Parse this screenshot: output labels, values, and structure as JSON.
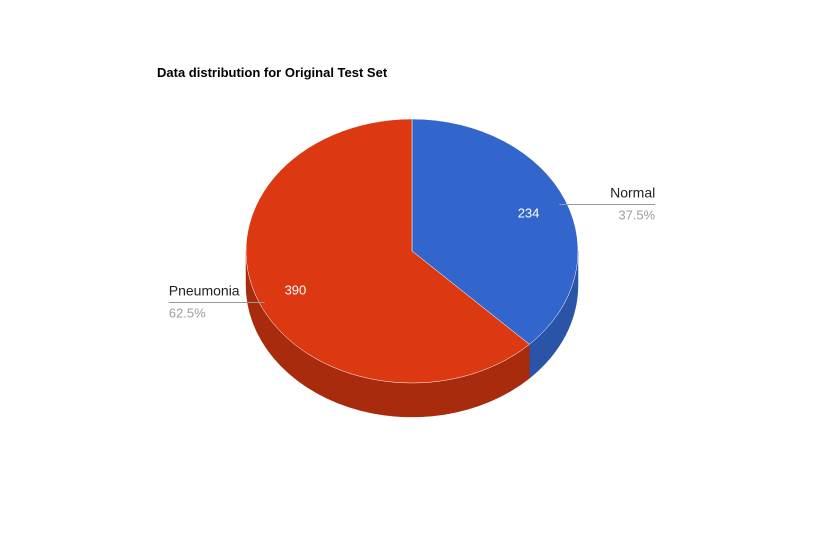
{
  "chart_data": {
    "type": "pie",
    "style": "3d",
    "title": "Data distribution for Original Test Set",
    "slices": [
      {
        "label": "Normal",
        "value": 234,
        "percent_label": "37.5%",
        "color": "#3366cc",
        "side_color": "#2a54a8"
      },
      {
        "label": "Pneumonia",
        "value": 390,
        "percent_label": "62.5%",
        "color": "#dc3912",
        "side_color": "#a82b0e"
      }
    ],
    "legend": "labeled"
  }
}
